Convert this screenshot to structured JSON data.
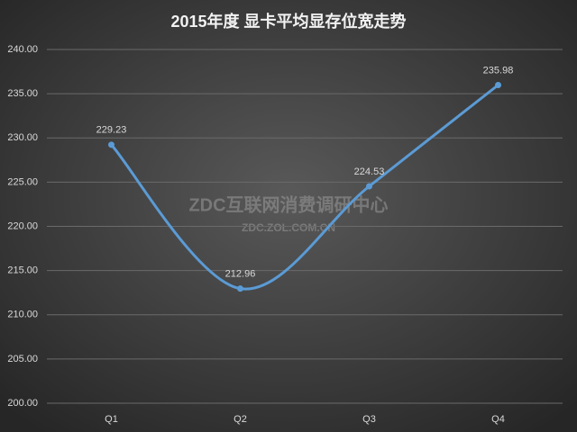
{
  "chart_data": {
    "type": "line",
    "title": "2015年度 显卡平均显存位宽走势",
    "categories": [
      "Q1",
      "Q2",
      "Q3",
      "Q4"
    ],
    "values": [
      229.23,
      212.96,
      224.53,
      235.98
    ],
    "color": "#5b9bd5",
    "smooth": true,
    "ylim": [
      200,
      240
    ],
    "yticks": [
      {
        "value": 200,
        "label": "200.00"
      },
      {
        "value": 205,
        "label": "205.00"
      },
      {
        "value": 210,
        "label": "210.00"
      },
      {
        "value": 215,
        "label": "215.00"
      },
      {
        "value": 220,
        "label": "220.00"
      },
      {
        "value": 225,
        "label": "225.00"
      },
      {
        "value": 230,
        "label": "230.00"
      },
      {
        "value": 235,
        "label": "235.00"
      },
      {
        "value": 240,
        "label": "240.00"
      }
    ],
    "grid": true,
    "watermark": [
      "ZDC互联网消费调研中心",
      "ZDC.ZOL.COM.CN"
    ]
  }
}
